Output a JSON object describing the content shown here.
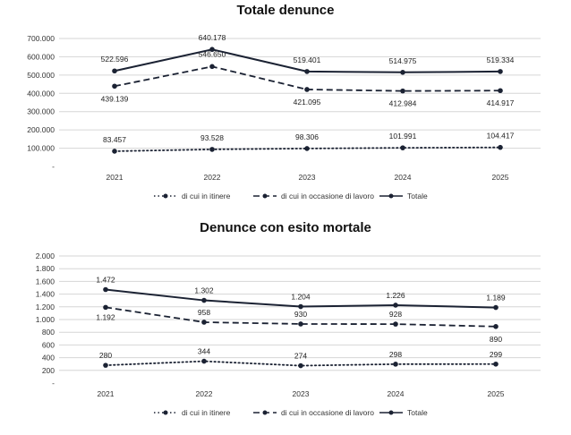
{
  "colors": {
    "line": "#1b2233",
    "grid": "#d6d6d6",
    "text": "#222222"
  },
  "chart_data": [
    {
      "type": "line",
      "title": "Totale denunce",
      "categories": [
        "2021",
        "2022",
        "2023",
        "2024",
        "2025"
      ],
      "y_ticks": [
        "700.000",
        "600.000",
        "500.000",
        "400.000",
        "300.000",
        "200.000",
        "100.000",
        "-"
      ],
      "ylim": [
        0,
        700000
      ],
      "grid": true,
      "legend_position": "bottom",
      "series": [
        {
          "name": "di cui in itinere",
          "style": "dotted",
          "values": [
            83457,
            93528,
            98306,
            101991,
            104417
          ],
          "labels": [
            "83.457",
            "93.528",
            "98.306",
            "101.991",
            "104.417"
          ]
        },
        {
          "name": "di cui in occasione di lavoro",
          "style": "dashed",
          "values": [
            439139,
            546650,
            421095,
            412984,
            414917
          ],
          "labels": [
            "439.139",
            "546.650",
            "421.095",
            "412.984",
            "414.917"
          ]
        },
        {
          "name": "Totale",
          "style": "solid",
          "values": [
            522596,
            640178,
            519401,
            514975,
            519334
          ],
          "labels": [
            "522.596",
            "640.178",
            "519.401",
            "514.975",
            "519.334"
          ]
        }
      ]
    },
    {
      "type": "line",
      "title": "Denunce con esito mortale",
      "categories": [
        "2021",
        "2022",
        "2023",
        "2024",
        "2025"
      ],
      "y_ticks": [
        "2.000",
        "1.800",
        "1.600",
        "1.400",
        "1.200",
        "1.000",
        "800",
        "600",
        "400",
        "200",
        "-"
      ],
      "ylim": [
        0,
        2000
      ],
      "grid": true,
      "legend_position": "bottom",
      "series": [
        {
          "name": "di cui in itinere",
          "style": "dotted",
          "values": [
            280,
            344,
            274,
            298,
            299
          ],
          "labels": [
            "280",
            "344",
            "274",
            "298",
            "299"
          ]
        },
        {
          "name": "di cui in occasione di lavoro",
          "style": "dashed",
          "values": [
            1192,
            958,
            930,
            928,
            890
          ],
          "labels": [
            "1.192",
            "958",
            "930",
            "928",
            "890"
          ]
        },
        {
          "name": "Totale",
          "style": "solid",
          "values": [
            1472,
            1302,
            1204,
            1226,
            1189
          ],
          "labels": [
            "1.472",
            "1.302",
            "1.204",
            "1.226",
            "1.189"
          ]
        }
      ]
    }
  ]
}
